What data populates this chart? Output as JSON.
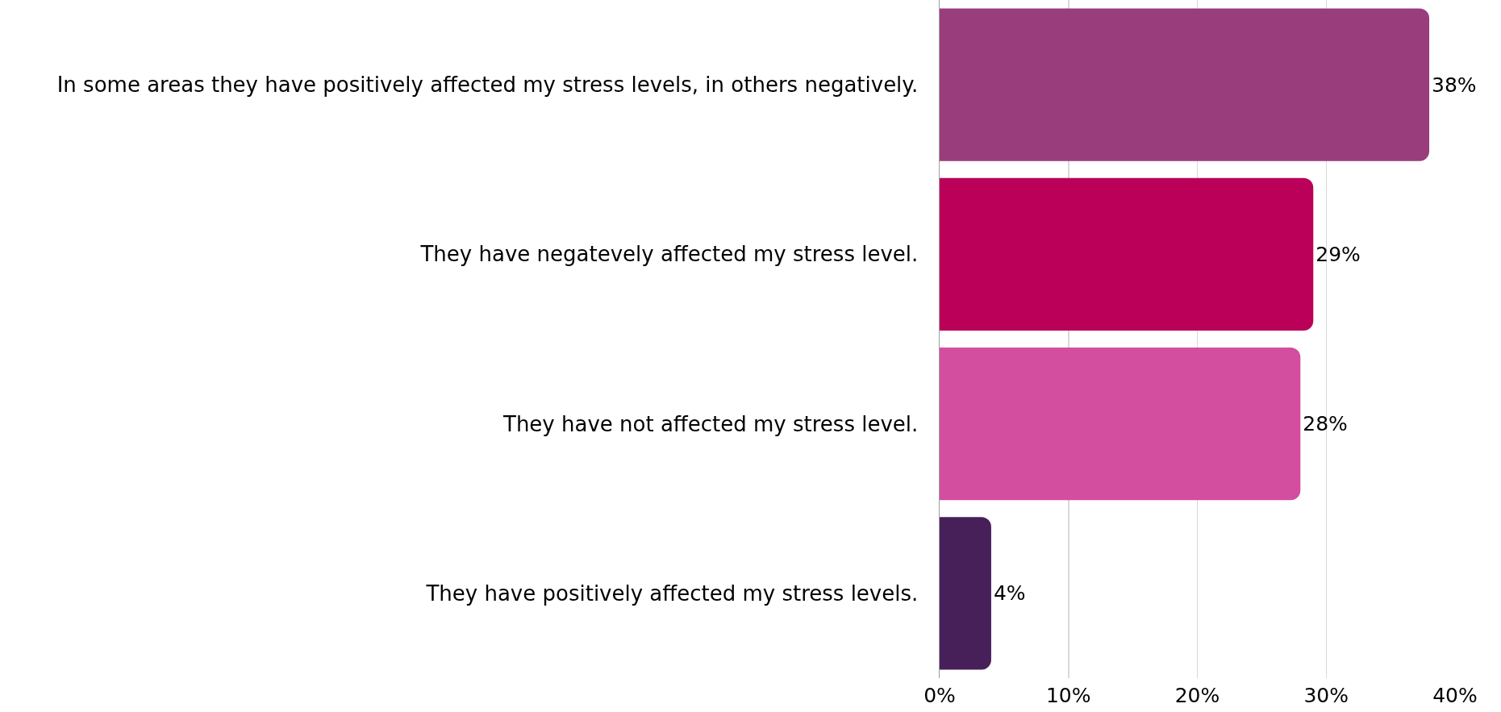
{
  "chart_data": {
    "type": "bar",
    "orientation": "horizontal",
    "categories": [
      "In some areas they have positively affected my stress levels, in others negatively.",
      "They have negatevely affected my stress level.",
      "They have not affected my stress level.",
      "They have positively affected my stress levels."
    ],
    "values": [
      38,
      29,
      28,
      4
    ],
    "colors": [
      "#993d7d",
      "#bb005a",
      "#d44e9f",
      "#47205a"
    ],
    "value_labels": [
      "38%",
      "29%",
      "28%",
      "4%"
    ],
    "xlim": [
      0,
      40
    ],
    "xticks": [
      {
        "value": 0,
        "label": "0%"
      },
      {
        "value": 10,
        "label": "10%"
      },
      {
        "value": 20,
        "label": "20%"
      },
      {
        "value": 30,
        "label": "30%"
      },
      {
        "value": 40,
        "label": "40%"
      }
    ],
    "grid": "x",
    "legend": false
  }
}
